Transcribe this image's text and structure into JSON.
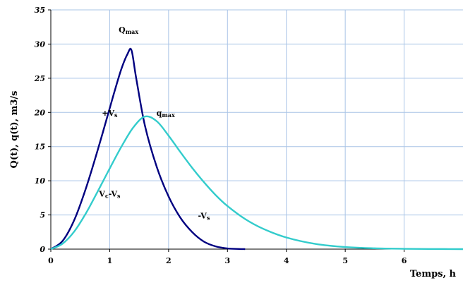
{
  "chart_data": {
    "type": "line",
    "title": "",
    "xlabel": "Temps, h",
    "ylabel": "Q(t), q(t), m3/s",
    "xlim": [
      0,
      7
    ],
    "ylim": [
      0,
      35
    ],
    "x_ticks": [
      "0",
      "1",
      "2",
      "3",
      "4",
      "5",
      "6"
    ],
    "y_ticks": [
      "0",
      "5",
      "10",
      "15",
      "20",
      "25",
      "30",
      "35"
    ],
    "grid": true,
    "series": [
      {
        "color": "#000080",
        "x": [
          0,
          0.2,
          0.4,
          0.6,
          0.8,
          1.0,
          1.1,
          1.2,
          1.3,
          1.37,
          1.45,
          1.6,
          1.8,
          2.0,
          2.2,
          2.4,
          2.6,
          2.8,
          3.0,
          3.2,
          3.3
        ],
        "y": [
          0,
          1.2,
          4.3,
          9.0,
          14.6,
          20.6,
          23.6,
          26.4,
          28.5,
          29.1,
          25.0,
          18.0,
          12.0,
          7.7,
          4.6,
          2.5,
          1.1,
          0.4,
          0.1,
          0.02,
          0
        ]
      },
      {
        "color": "#33CCCC",
        "x": [
          0,
          0.2,
          0.4,
          0.6,
          0.8,
          1.0,
          1.2,
          1.4,
          1.6,
          1.8,
          2.0,
          2.2,
          2.4,
          2.6,
          2.8,
          3.0,
          3.3,
          3.6,
          4.0,
          4.5,
          5.0,
          5.5,
          6.0,
          6.5,
          7.0
        ],
        "y": [
          0,
          0.8,
          2.6,
          5.3,
          8.5,
          11.8,
          15.0,
          17.8,
          19.4,
          18.7,
          16.6,
          14.2,
          11.9,
          9.8,
          7.9,
          6.3,
          4.4,
          3.0,
          1.7,
          0.75,
          0.3,
          0.12,
          0.05,
          0.02,
          0
        ]
      }
    ],
    "annotations": [
      {
        "main": "Q",
        "sub": "max",
        "x": 1.32,
        "y": 31.7
      },
      {
        "main": "q",
        "sub": "max",
        "x": 1.95,
        "y": 19.5
      },
      {
        "main": "+V",
        "sub": "s",
        "x": 1.0,
        "y": 19.5
      },
      {
        "main": "V",
        "sub": "c",
        "tail": "-V",
        "sub2": "s",
        "x": 1.0,
        "y": 7.7
      },
      {
        "main": "-V",
        "sub": "s",
        "x": 2.6,
        "y": 4.5
      }
    ]
  }
}
